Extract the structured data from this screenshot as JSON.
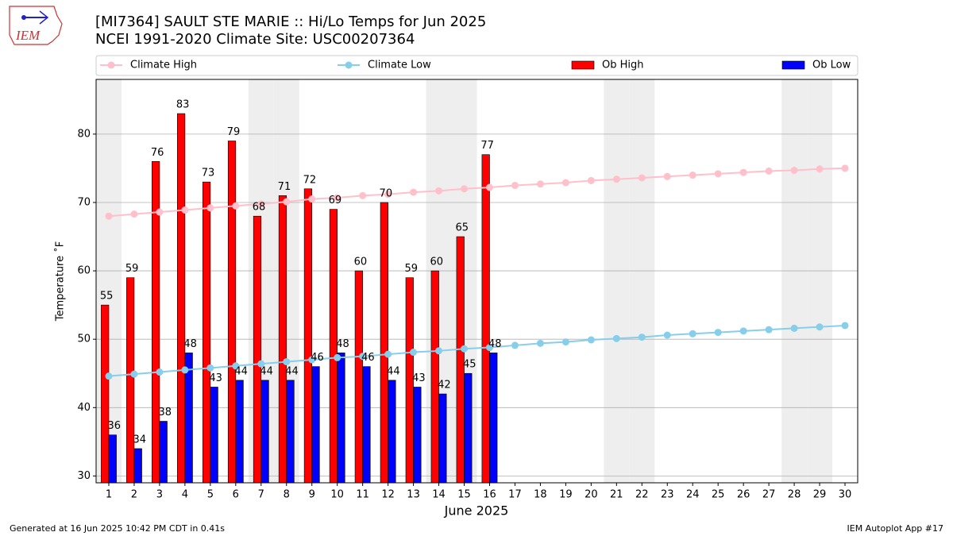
{
  "chart_data": {
    "type": "bar",
    "title": "[MI7364] SAULT STE MARIE :: Hi/Lo Temps for Jun 2025",
    "subtitle": "NCEI 1991-2020 Climate Site: USC00207364",
    "logo_text": "IEM",
    "xlabel": "June 2025",
    "ylabel": "Temperature ˚F",
    "footer_left": "Generated at 16 Jun 2025 10:42 PM CDT in 0.41s",
    "footer_right": "IEM Autoplot App #17",
    "x": [
      1,
      2,
      3,
      4,
      5,
      6,
      7,
      8,
      9,
      10,
      11,
      12,
      13,
      14,
      15,
      16,
      17,
      18,
      19,
      20,
      21,
      22,
      23,
      24,
      25,
      26,
      27,
      28,
      29,
      30
    ],
    "xlim": [
      0.5,
      30.5
    ],
    "xticks": [
      1,
      2,
      3,
      4,
      5,
      6,
      7,
      8,
      9,
      10,
      11,
      12,
      13,
      14,
      15,
      16,
      17,
      18,
      19,
      20,
      21,
      22,
      23,
      24,
      25,
      26,
      27,
      28,
      29,
      30
    ],
    "ylim": [
      29,
      88
    ],
    "yticks": [
      30,
      40,
      50,
      60,
      70,
      80
    ],
    "grid": true,
    "legend": "top",
    "shaded_days": [
      1,
      7,
      8,
      14,
      15,
      21,
      22,
      28,
      29
    ],
    "series": [
      {
        "name": "Climate High",
        "type": "line",
        "color": "#ffc0cb",
        "values": [
          68.0,
          68.3,
          68.6,
          68.9,
          69.2,
          69.5,
          69.8,
          70.1,
          70.5,
          70.7,
          71.0,
          71.2,
          71.5,
          71.7,
          72.0,
          72.2,
          72.5,
          72.7,
          72.9,
          73.2,
          73.4,
          73.6,
          73.8,
          74.0,
          74.2,
          74.4,
          74.6,
          74.7,
          74.9,
          75.0
        ]
      },
      {
        "name": "Climate Low",
        "type": "line",
        "color": "#87ceeb",
        "values": [
          44.6,
          44.9,
          45.2,
          45.5,
          45.8,
          46.1,
          46.4,
          46.7,
          47.0,
          47.3,
          47.5,
          47.8,
          48.1,
          48.3,
          48.6,
          48.8,
          49.1,
          49.4,
          49.6,
          49.9,
          50.1,
          50.3,
          50.6,
          50.8,
          51.0,
          51.2,
          51.4,
          51.6,
          51.8,
          52.0
        ]
      },
      {
        "name": "Ob High",
        "type": "bar",
        "color": "#ff0000",
        "values": [
          55,
          59,
          76,
          83,
          73,
          79,
          68,
          71,
          72,
          69,
          60,
          70,
          59,
          60,
          65,
          77,
          null,
          null,
          null,
          null,
          null,
          null,
          null,
          null,
          null,
          null,
          null,
          null,
          null,
          null
        ]
      },
      {
        "name": "Ob Low",
        "type": "bar",
        "color": "#0000ff",
        "values": [
          36,
          34,
          38,
          48,
          43,
          44,
          44,
          44,
          46,
          48,
          46,
          44,
          43,
          42,
          45,
          48,
          null,
          null,
          null,
          null,
          null,
          null,
          null,
          null,
          null,
          null,
          null,
          null,
          null,
          null
        ]
      }
    ]
  }
}
